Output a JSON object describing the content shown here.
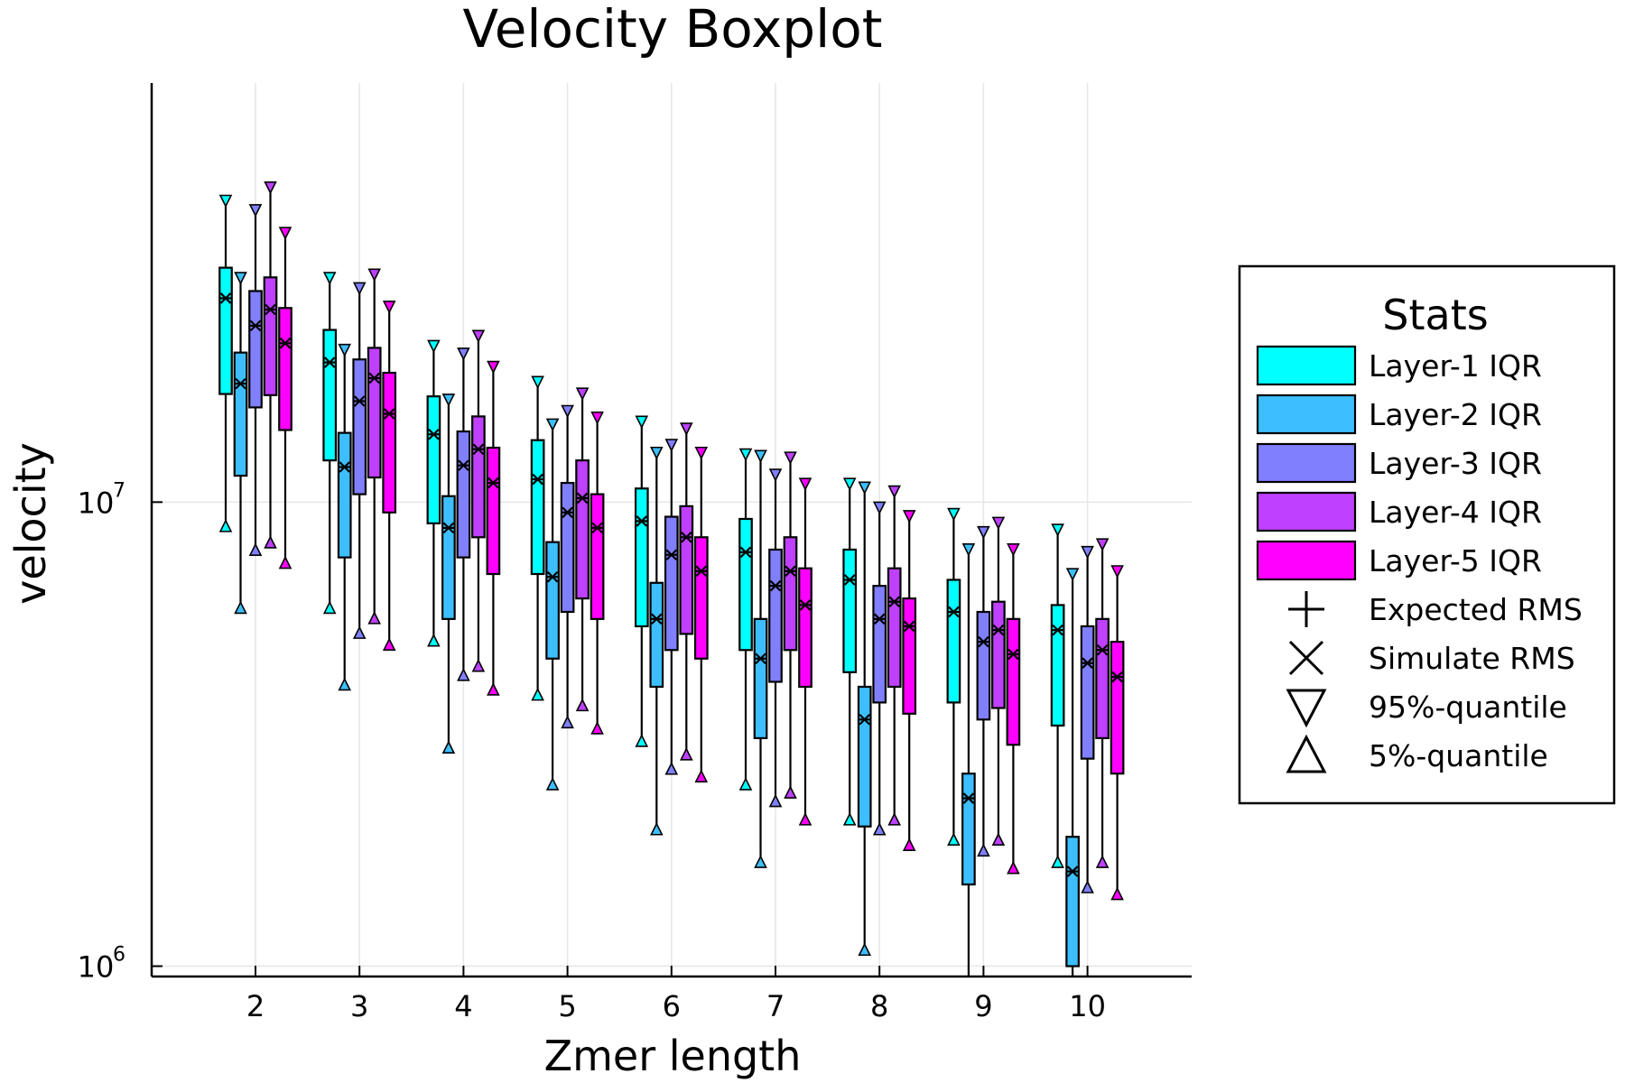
{
  "chart_data": {
    "type": "box",
    "title": "Velocity Boxplot",
    "xlabel": "Zmer length",
    "ylabel": "velocity",
    "y_scale": "log10",
    "ylim": [
      950000,
      80000000
    ],
    "y_ticks": [
      {
        "value": 1000000,
        "base": "10",
        "exp": "6"
      },
      {
        "value": 10000000,
        "base": "10",
        "exp": "7"
      }
    ],
    "x_ticks": [
      "2",
      "3",
      "4",
      "5",
      "6",
      "7",
      "8",
      "9",
      "10"
    ],
    "grid": true,
    "legend": {
      "title": "Stats",
      "placement": "right",
      "box_entries": [
        {
          "label": "Layer-1 IQR",
          "color": "#00FFFF"
        },
        {
          "label": "Layer-2 IQR",
          "color": "#3DBFFF"
        },
        {
          "label": "Layer-3 IQR",
          "color": "#8080FF"
        },
        {
          "label": "Layer-4 IQR",
          "color": "#BF40FF"
        },
        {
          "label": "Layer-5 IQR",
          "color": "#FF00FF"
        }
      ],
      "marker_entries": [
        {
          "label": "Expected RMS",
          "marker": "plus"
        },
        {
          "label": "Simulate RMS",
          "marker": "cross"
        },
        {
          "label": "95%-quantile",
          "marker": "triangle-down"
        },
        {
          "label": "5%-quantile",
          "marker": "triangle-up"
        }
      ]
    },
    "series": [
      {
        "name": "Layer-1 IQR",
        "color": "#00FFFF",
        "q1": [
          17100000,
          12300000,
          9000000,
          7000000,
          5400000,
          4800000,
          4300000,
          3700000,
          3300000
        ],
        "q3": [
          32000000,
          23500000,
          16900000,
          13600000,
          10700000,
          9200000,
          7900000,
          6800000,
          6000000
        ],
        "p95": [
          44000000,
          30000000,
          21400000,
          17900000,
          14700000,
          12500000,
          10800000,
          9300000,
          8600000
        ],
        "p5": [
          9000000,
          6000000,
          5100000,
          3900000,
          3100000,
          2500000,
          2100000,
          1900000,
          1700000
        ],
        "rms": [
          27500000,
          20000000,
          14000000,
          11200000,
          9100000,
          7800000,
          6800000,
          5800000,
          5300000
        ]
      },
      {
        "name": "Layer-2 IQR",
        "color": "#3DBFFF",
        "q1": [
          11400000,
          7600000,
          5600000,
          4600000,
          4000000,
          3100000,
          2000000,
          1500000,
          1000000
        ],
        "q3": [
          21000000,
          14100000,
          10300000,
          8200000,
          6700000,
          5600000,
          4000000,
          2600000,
          1900000
        ],
        "p95": [
          30000000,
          21000000,
          16400000,
          14500000,
          12600000,
          12400000,
          10600000,
          7800000,
          6900000
        ],
        "p5": [
          6000000,
          4100000,
          3000000,
          2500000,
          2000000,
          1700000,
          1100000,
          0,
          0
        ],
        "rms": [
          18000000,
          11900000,
          8800000,
          6900000,
          5600000,
          4600000,
          3400000,
          2300000,
          1600000
        ]
      },
      {
        "name": "Layer-3 IQR",
        "color": "#8080FF",
        "q1": [
          16000000,
          10400000,
          7600000,
          5800000,
          4800000,
          4100000,
          3700000,
          3400000,
          2800000
        ],
        "q3": [
          28500000,
          20300000,
          14200000,
          11000000,
          9300000,
          7900000,
          6600000,
          5800000,
          5400000
        ],
        "p95": [
          42000000,
          28500000,
          20600000,
          15500000,
          13100000,
          11300000,
          9600000,
          8500000,
          7700000
        ],
        "p5": [
          8000000,
          5300000,
          4300000,
          3400000,
          2700000,
          2300000,
          2000000,
          1800000,
          1500000
        ],
        "rms": [
          24000000,
          16500000,
          12000000,
          9500000,
          7700000,
          6600000,
          5600000,
          5000000,
          4500000
        ]
      },
      {
        "name": "Layer-4 IQR",
        "color": "#BF40FF",
        "q1": [
          17000000,
          11300000,
          8400000,
          6200000,
          5200000,
          4800000,
          4000000,
          3600000,
          3100000
        ],
        "q3": [
          30500000,
          21500000,
          15300000,
          12300000,
          9800000,
          8400000,
          7200000,
          6100000,
          5600000
        ],
        "p95": [
          47000000,
          30500000,
          22500000,
          16900000,
          14200000,
          12300000,
          10400000,
          8900000,
          8000000
        ],
        "p5": [
          8300000,
          5700000,
          4500000,
          3700000,
          2900000,
          2400000,
          2100000,
          1900000,
          1700000
        ],
        "rms": [
          26000000,
          18500000,
          13000000,
          10200000,
          8400000,
          7100000,
          6100000,
          5300000,
          4800000
        ]
      },
      {
        "name": "Layer-5 IQR",
        "color": "#FF00FF",
        "q1": [
          14300000,
          9500000,
          7000000,
          5600000,
          4600000,
          4000000,
          3500000,
          3000000,
          2600000
        ],
        "q3": [
          26200000,
          19000000,
          13100000,
          10400000,
          8400000,
          7200000,
          6200000,
          5600000,
          5000000
        ],
        "p95": [
          37500000,
          26000000,
          19300000,
          15000000,
          12600000,
          10800000,
          9200000,
          7800000,
          7000000
        ],
        "p5": [
          7500000,
          5000000,
          4000000,
          3300000,
          2600000,
          2100000,
          1850000,
          1650000,
          1450000
        ],
        "rms": [
          22000000,
          15500000,
          11000000,
          8800000,
          7100000,
          6000000,
          5400000,
          4700000,
          4200000
        ]
      }
    ]
  }
}
